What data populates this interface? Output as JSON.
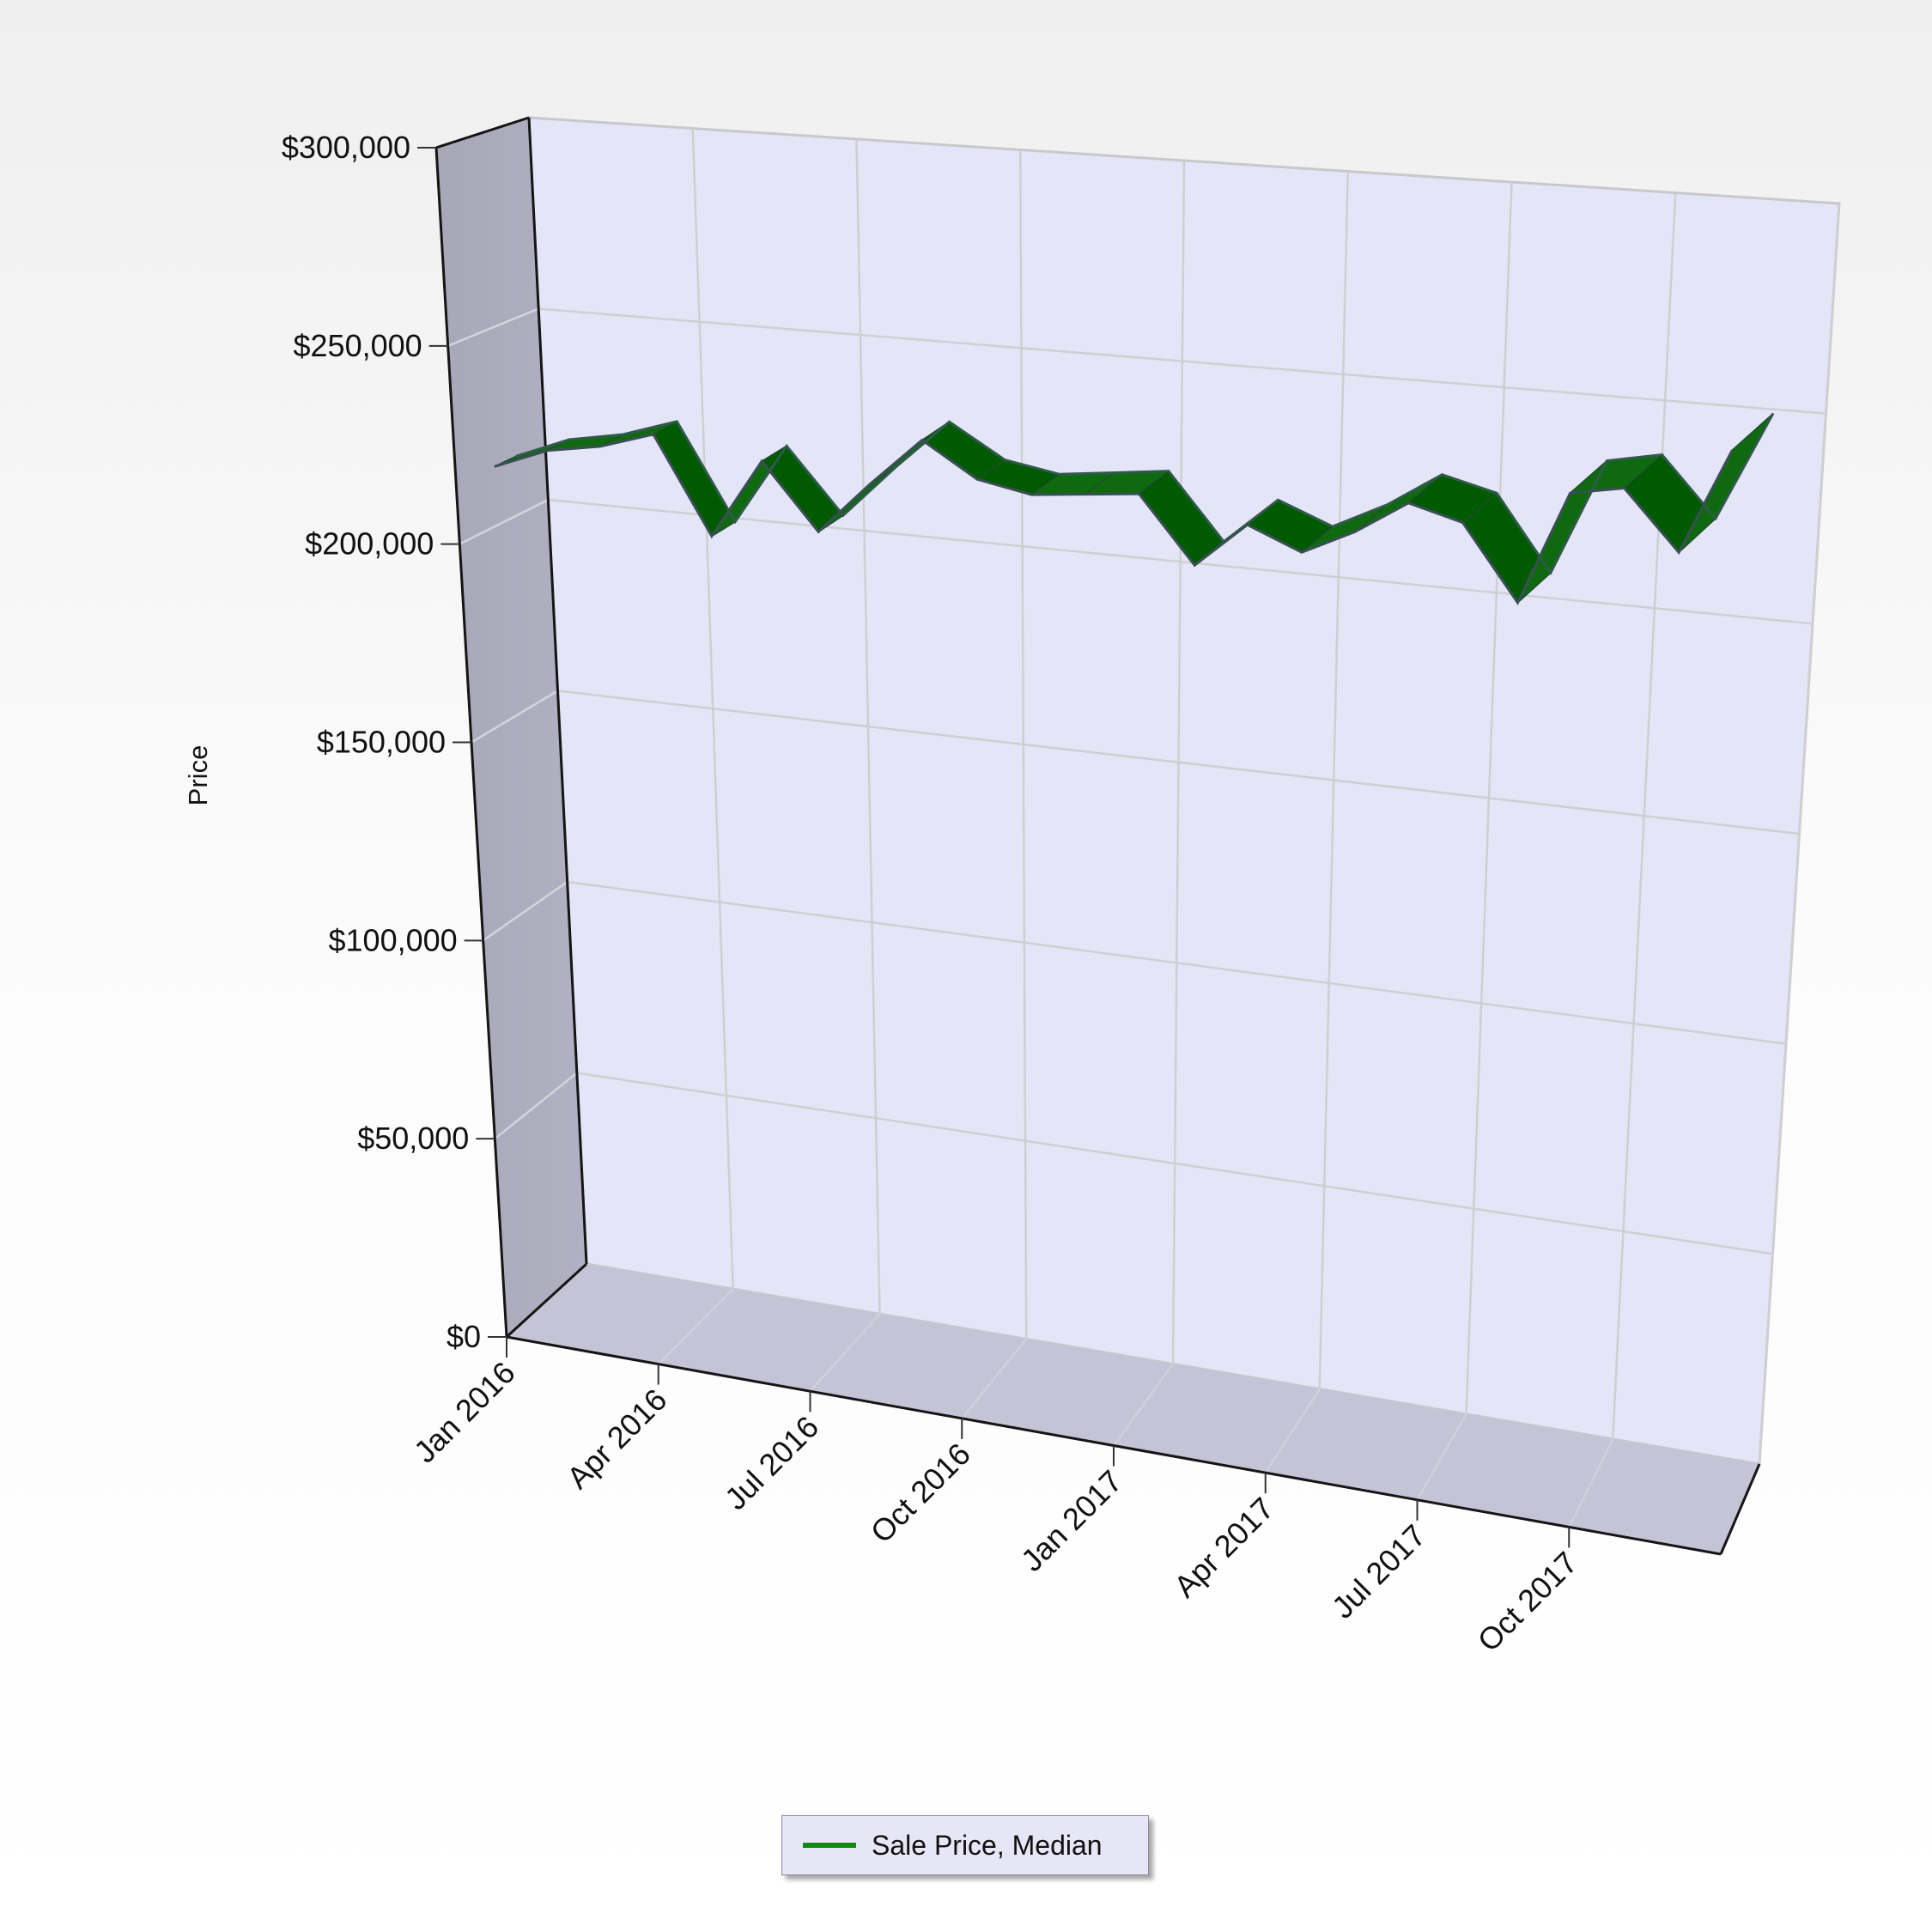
{
  "chart_data": {
    "type": "line",
    "title": "",
    "xlabel": "",
    "ylabel": "Price",
    "ylim": [
      0,
      300000
    ],
    "y_ticks": [
      "$0",
      "$50,000",
      "$100,000",
      "$150,000",
      "$200,000",
      "$250,000",
      "$300,000"
    ],
    "x_ticks": [
      "Jan 2016",
      "Apr 2016",
      "Jul 2016",
      "Oct 2016",
      "Jan 2017",
      "Apr 2017",
      "Jul 2017",
      "Oct 2017"
    ],
    "grid": true,
    "three_d": true,
    "legend_position": "bottom-center",
    "x": [
      "Jan 2016",
      "Feb 2016",
      "Mar 2016",
      "Apr 2016",
      "May 2016",
      "Jun 2016",
      "Jul 2016",
      "Aug 2016",
      "Sep 2016",
      "Oct 2016",
      "Nov 2016",
      "Dec 2016",
      "Jan 2017",
      "Feb 2017",
      "Mar 2017",
      "Apr 2017",
      "May 2017",
      "Jun 2017",
      "Jul 2017",
      "Aug 2017",
      "Sep 2017",
      "Oct 2017",
      "Nov 2017",
      "Dec 2017"
    ],
    "series": [
      {
        "name": "Sale Price, Median",
        "color": "#006400",
        "values": [
          215000,
          221000,
          224000,
          229000,
          205000,
          226000,
          210000,
          224000,
          237000,
          229000,
          227000,
          229000,
          231000,
          215000,
          227000,
          222000,
          229000,
          238000,
          235000,
          217000,
          246000,
          249000,
          235000,
          262000
        ]
      }
    ]
  },
  "legend": {
    "label": "Sale Price, Median",
    "color": "#118811"
  }
}
